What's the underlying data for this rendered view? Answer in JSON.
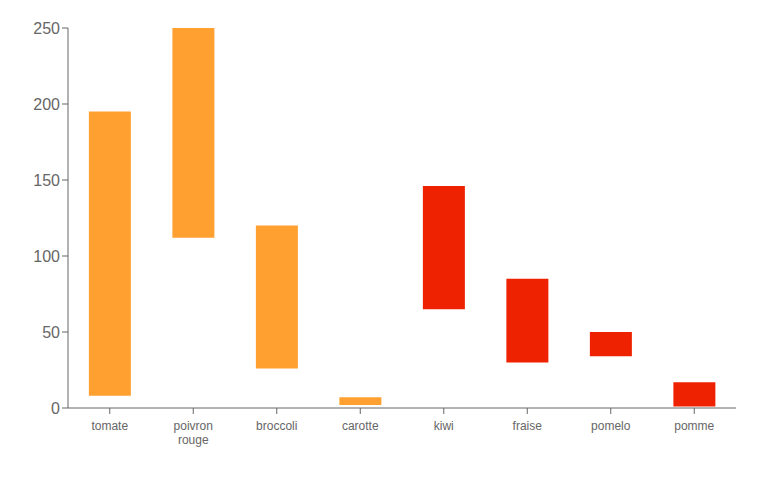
{
  "chart_data": {
    "type": "bar",
    "categories": [
      "tomate",
      "poivron\nrouge",
      "broccoli",
      "carotte",
      "kiwi",
      "fraise",
      "pomelo",
      "pomme"
    ],
    "values": [
      [
        8,
        195
      ],
      [
        112,
        250
      ],
      [
        26,
        120
      ],
      [
        2,
        7
      ],
      [
        65,
        146
      ],
      [
        30,
        85
      ],
      [
        34,
        50
      ],
      [
        1,
        17
      ]
    ],
    "colors": [
      "#FFA030",
      "#FFA030",
      "#FFA030",
      "#FFA030",
      "#EE2200",
      "#EE2200",
      "#EE2200",
      "#EE2200"
    ],
    "ylim": [
      0,
      250
    ],
    "yticks": [
      0,
      50,
      100,
      150,
      200,
      250
    ],
    "grid": false
  }
}
